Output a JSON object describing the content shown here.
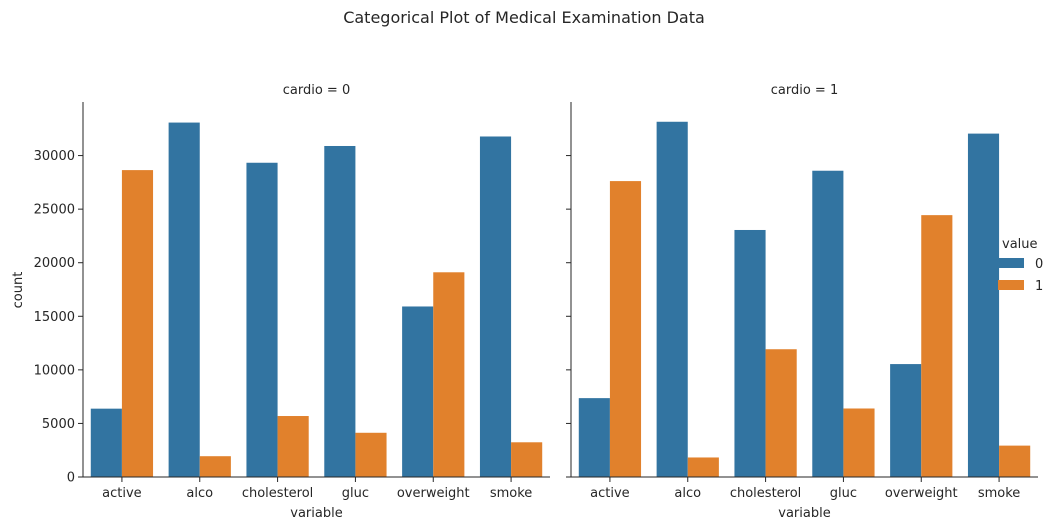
{
  "chart_data": {
    "type": "bar",
    "title": "Categorical Plot of Medical Examination Data",
    "categories": [
      "active",
      "alco",
      "cholesterol",
      "gluc",
      "overweight",
      "smoke"
    ],
    "xlabel": "variable",
    "ylabel": "count",
    "ylim": [
      0,
      35000
    ],
    "yticks": [
      "0",
      "5000",
      "10000",
      "15000",
      "20000",
      "25000",
      "30000"
    ],
    "legend": {
      "title": "value",
      "placement": "right",
      "entries": [
        "0",
        "1"
      ]
    },
    "colors": {
      "0": "#3274a1",
      "1": "#e1812c"
    },
    "grid": false,
    "panels": [
      {
        "label": "cardio = 0",
        "series": [
          {
            "name": "0",
            "values": [
              6378,
              33080,
              29330,
              30894,
              15915,
              31781
            ]
          },
          {
            "name": "1",
            "values": [
              28643,
              1941,
              5691,
              4127,
              19106,
              3240
            ]
          }
        ]
      },
      {
        "label": "cardio = 1",
        "series": [
          {
            "name": "0",
            "values": [
              7361,
              33156,
              23055,
              28585,
              10539,
              32050
            ]
          },
          {
            "name": "1",
            "values": [
              27618,
              1823,
              11924,
              6394,
              24440,
              2929
            ]
          }
        ]
      }
    ]
  }
}
